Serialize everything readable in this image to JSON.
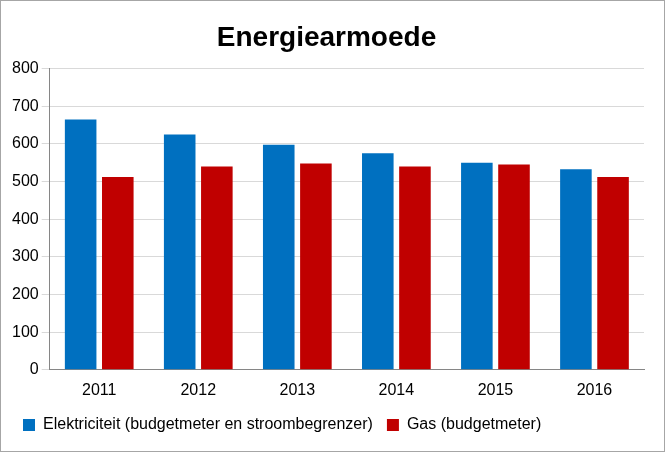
{
  "chart_data": {
    "type": "bar",
    "title": "Energiearmoede",
    "categories": [
      "2011",
      "2012",
      "2013",
      "2014",
      "2015",
      "2016"
    ],
    "series": [
      {
        "name": "Elektriciteit (budgetmeter en stroombegrenzer)",
        "color": "#0070c0",
        "values": [
          665,
          625,
          598,
          575,
          550,
          533
        ]
      },
      {
        "name": "Gas (budgetmeter)",
        "color": "#c00000",
        "values": [
          512,
          540,
          548,
          540,
          545,
          512
        ]
      }
    ],
    "ylim": [
      0,
      800
    ],
    "yticks": [
      0,
      100,
      200,
      300,
      400,
      500,
      600,
      700,
      800
    ],
    "grid": true,
    "legend": "bottom"
  }
}
